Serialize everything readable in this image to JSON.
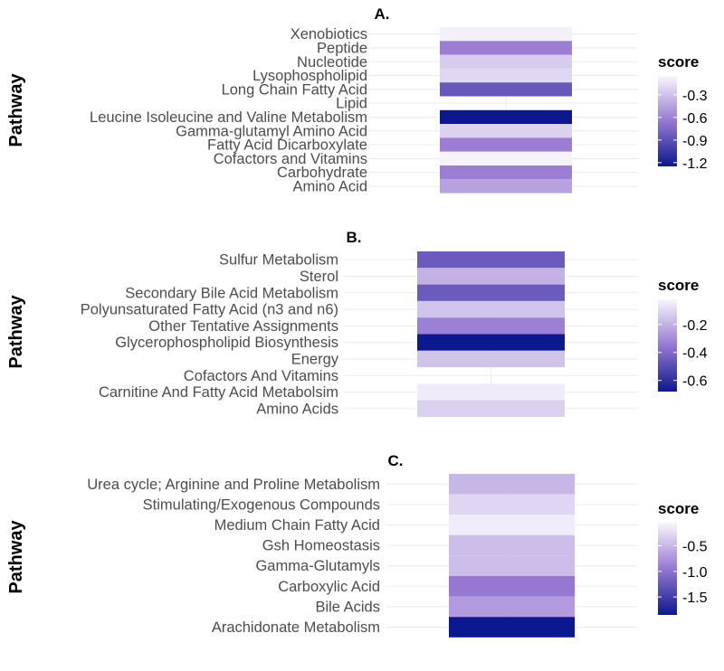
{
  "chart_data": [
    {
      "type": "heatmap",
      "title": "A.",
      "ylabel": "Pathway",
      "legend_title": "score",
      "legend_ticks": [
        "-0.3",
        "-0.6",
        "-0.9",
        "-1.2"
      ],
      "legend_tick_values": [
        -0.3,
        -0.6,
        -0.9,
        -1.2
      ],
      "score_range": [
        -1.25,
        -0.05
      ],
      "categories": [
        "Xenobiotics",
        "Peptide",
        "Nucleotide",
        "Lysophospholipid",
        "Long Chain Fatty Acid",
        "Lipid",
        "Leucine  Isoleucine and Valine Metabolism",
        "Gamma-glutamyl Amino Acid",
        "Fatty Acid  Dicarboxylate",
        "Cofactors and Vitamins",
        "Carbohydrate",
        "Amino Acid"
      ],
      "values": [
        -0.08,
        -0.62,
        -0.25,
        -0.2,
        -0.85,
        null,
        -1.25,
        -0.22,
        -0.62,
        -0.06,
        -0.62,
        -0.45
      ]
    },
    {
      "type": "heatmap",
      "title": "B.",
      "ylabel": "Pathway",
      "legend_title": "score",
      "legend_ticks": [
        "-0.2",
        "-0.4",
        "-0.6"
      ],
      "legend_tick_values": [
        -0.2,
        -0.4,
        -0.6
      ],
      "score_range": [
        -0.68,
        -0.02
      ],
      "categories": [
        "Sulfur Metabolism",
        "Sterol",
        "Secondary Bile Acid Metabolism",
        "Polyunsaturated Fatty Acid (n3 and n6)",
        "Other Tentative Assignments",
        "Glycerophospholipid Biosynthesis",
        "Energy",
        "Cofactors And Vitamins",
        "Carnitine And Fatty Acid Metabolsim",
        "Amino Acids"
      ],
      "values": [
        -0.45,
        -0.2,
        -0.45,
        -0.15,
        -0.33,
        -0.68,
        -0.15,
        null,
        -0.05,
        -0.12
      ]
    },
    {
      "type": "heatmap",
      "title": "C.",
      "ylabel": "Pathway",
      "legend_title": "score",
      "legend_ticks": [
        "-0.5",
        "-1.0",
        "-1.5"
      ],
      "legend_tick_values": [
        -0.5,
        -1.0,
        -1.5
      ],
      "score_range": [
        -1.85,
        -0.05
      ],
      "categories": [
        "Urea cycle; Arginine and Proline Metabolism",
        "Stimulating/Exogenous Compounds",
        "Medium Chain Fatty Acid",
        "Gsh Homeostasis",
        "Gamma-Glutamyls",
        "Carboxylic Acid",
        "Bile Acids",
        "Arachidonate Metabolism"
      ],
      "values": [
        -0.5,
        -0.28,
        -0.12,
        -0.45,
        -0.45,
        -0.95,
        -0.7,
        -1.85
      ]
    }
  ]
}
